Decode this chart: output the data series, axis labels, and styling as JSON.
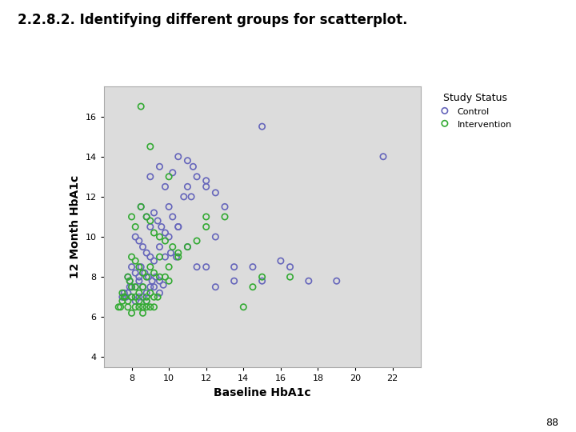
{
  "title": "2.2.8.2. Identifying different groups for scatterplot.",
  "xlabel": "Baseline HbA1c",
  "ylabel": "12 Month HbA1c",
  "legend_title": "Study Status",
  "legend_labels": [
    "Control",
    "Intervention"
  ],
  "control_color": "#6666bb",
  "intervention_color": "#33aa33",
  "bg_color": "#dcdcdc",
  "xlim": [
    6.5,
    23.5
  ],
  "ylim": [
    3.5,
    17.5
  ],
  "xticks": [
    8,
    10,
    12,
    14,
    16,
    18,
    20,
    22
  ],
  "yticks": [
    4,
    6,
    8,
    10,
    12,
    14,
    16
  ],
  "control_x": [
    9.5,
    10.2,
    10.5,
    11.0,
    11.3,
    9.8,
    10.8,
    11.5,
    12.0,
    12.5,
    8.5,
    8.8,
    9.0,
    9.2,
    9.4,
    9.6,
    9.8,
    10.0,
    10.2,
    10.5,
    8.2,
    8.4,
    8.6,
    8.8,
    9.0,
    9.2,
    9.5,
    9.8,
    10.1,
    10.4,
    8.0,
    8.2,
    8.4,
    8.5,
    8.7,
    8.9,
    9.1,
    9.3,
    9.5,
    9.7,
    7.8,
    7.9,
    8.0,
    8.2,
    8.4,
    8.6,
    8.8,
    9.0,
    9.2,
    9.5,
    7.5,
    7.6,
    7.7,
    7.8,
    7.9,
    8.0,
    8.2,
    8.4,
    8.6,
    8.8,
    11.2,
    12.0,
    13.0,
    14.5,
    15.0,
    16.0,
    17.5,
    19.0,
    21.5,
    10.5,
    11.0,
    11.5,
    12.0,
    12.5,
    13.5,
    15.0,
    16.5,
    9.0,
    10.0,
    11.0,
    12.5,
    13.5
  ],
  "control_y": [
    13.5,
    13.2,
    14.0,
    13.8,
    13.5,
    12.5,
    12.0,
    13.0,
    12.8,
    12.2,
    11.5,
    11.0,
    10.5,
    11.2,
    10.8,
    10.5,
    10.2,
    10.0,
    11.0,
    10.5,
    10.0,
    9.8,
    9.5,
    9.2,
    9.0,
    8.8,
    9.5,
    9.0,
    9.2,
    9.0,
    8.5,
    8.2,
    8.0,
    8.5,
    8.2,
    8.0,
    7.8,
    8.0,
    7.8,
    7.6,
    8.0,
    7.8,
    7.5,
    7.5,
    7.8,
    7.5,
    7.2,
    7.5,
    7.5,
    7.2,
    7.0,
    7.2,
    7.0,
    7.2,
    7.5,
    7.0,
    6.8,
    7.0,
    7.0,
    6.8,
    12.0,
    12.5,
    11.5,
    8.5,
    15.5,
    8.8,
    7.8,
    7.8,
    14.0,
    10.5,
    9.5,
    8.5,
    8.5,
    7.5,
    7.8,
    7.8,
    8.5,
    13.0,
    11.5,
    12.5,
    10.0,
    8.5
  ],
  "intervention_x": [
    8.0,
    8.2,
    8.5,
    8.8,
    9.0,
    9.2,
    9.5,
    9.8,
    10.2,
    10.5,
    8.0,
    8.2,
    8.4,
    8.6,
    8.8,
    9.0,
    9.2,
    9.5,
    9.8,
    10.0,
    7.8,
    7.9,
    8.0,
    8.2,
    8.4,
    8.6,
    8.8,
    9.0,
    9.2,
    9.4,
    7.5,
    7.6,
    7.8,
    8.0,
    8.2,
    8.4,
    8.6,
    8.8,
    9.0,
    9.2,
    7.3,
    7.4,
    7.5,
    7.6,
    7.8,
    8.0,
    8.2,
    8.4,
    8.6,
    8.8,
    9.5,
    10.0,
    10.5,
    11.0,
    11.5,
    12.0,
    13.0,
    14.0,
    15.0,
    16.5,
    8.5,
    9.0,
    10.0,
    12.0,
    14.5
  ],
  "intervention_y": [
    11.0,
    10.5,
    11.5,
    11.0,
    10.8,
    10.2,
    10.0,
    9.8,
    9.5,
    9.2,
    9.0,
    8.8,
    8.5,
    8.2,
    8.0,
    8.5,
    8.2,
    8.0,
    8.0,
    7.8,
    8.0,
    7.8,
    7.5,
    7.5,
    7.2,
    7.5,
    7.0,
    7.2,
    7.0,
    7.0,
    7.2,
    7.0,
    6.8,
    7.0,
    7.0,
    6.8,
    6.5,
    6.8,
    6.5,
    6.5,
    6.5,
    6.5,
    6.8,
    7.0,
    6.5,
    6.2,
    6.5,
    6.5,
    6.2,
    6.5,
    9.0,
    8.5,
    9.0,
    9.5,
    9.8,
    11.0,
    11.0,
    6.5,
    8.0,
    8.0,
    16.5,
    14.5,
    13.0,
    10.5,
    7.5
  ],
  "marker_size": 28,
  "linewidth": 1.2
}
